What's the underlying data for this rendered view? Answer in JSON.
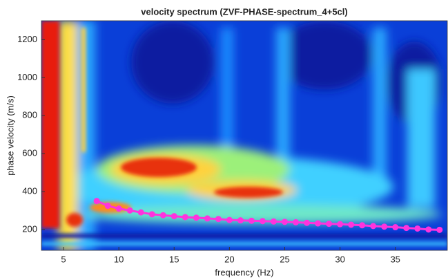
{
  "chart_data": {
    "type": "line",
    "title": "velocity spectrum (ZVF-PHASE-spectrum_4+5cl)",
    "x_label": "frequency (Hz)",
    "y_label": "phase velocity (m/s)",
    "x": [
      8,
      9,
      10,
      11,
      12,
      13,
      14,
      15,
      16,
      17,
      18,
      19,
      20,
      21,
      22,
      23,
      24,
      25,
      26,
      27,
      28,
      29,
      30,
      31,
      32,
      33,
      34,
      35,
      36,
      37,
      38,
      39
    ],
    "series": [
      {
        "color": "#ff33dd",
        "values": [
          350,
          325,
          310,
          300,
          290,
          280,
          275,
          270,
          265,
          262,
          258,
          255,
          250,
          248,
          246,
          244,
          242,
          240,
          238,
          235,
          232,
          230,
          228,
          225,
          222,
          218,
          215,
          212,
          208,
          205,
          200,
          198
        ]
      }
    ],
    "xlim": [
      3,
      39.7
    ],
    "ylim": [
      90,
      1300
    ],
    "xticks": [
      5,
      10,
      15,
      20,
      25,
      30,
      35
    ],
    "yticks": [
      200,
      400,
      600,
      800,
      1000,
      1200
    ]
  }
}
